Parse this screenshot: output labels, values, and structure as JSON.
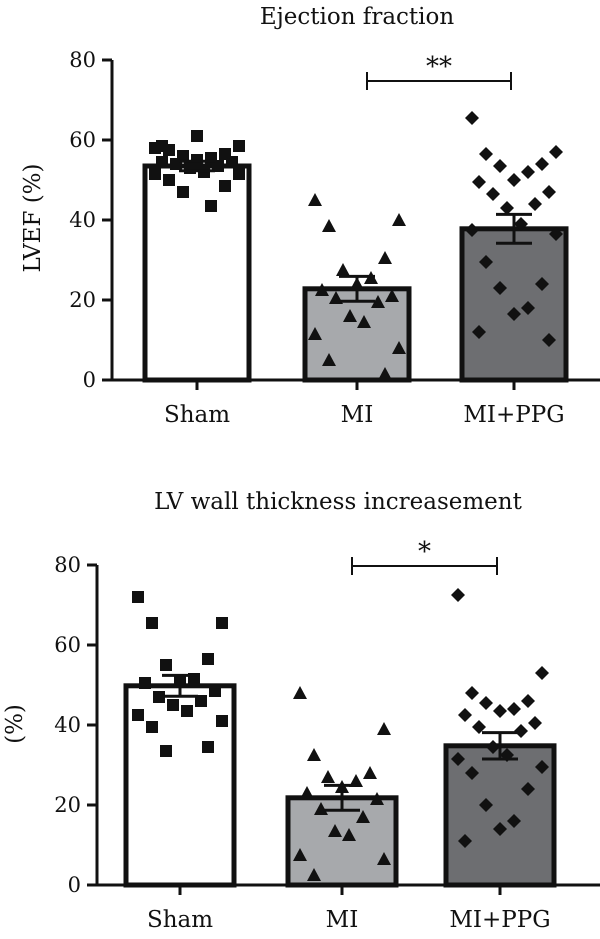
{
  "chart_data": [
    {
      "type": "bar",
      "title": "Ejection fraction",
      "ylabel": "LVEF (%)",
      "xlabel": "",
      "ylim": [
        0,
        80
      ],
      "yticks": [
        "0",
        "20",
        "40",
        "60",
        "80"
      ],
      "categories": [
        "Sham",
        "MI",
        "MI+PPG"
      ],
      "bar_colors": [
        "#ffffff",
        "#a7a9ac",
        "#6d6e71"
      ],
      "marker_shapes": [
        "square",
        "triangle",
        "diamond"
      ],
      "values": [
        53.5,
        22.8,
        37.8
      ],
      "sem": [
        1.2,
        3.1,
        3.6
      ],
      "points": [
        [
          58,
          58.5,
          57.5,
          56.5,
          56,
          55.5,
          55,
          54.5,
          54.5,
          54,
          53.5,
          53,
          52,
          51.5,
          51.5,
          50,
          48.5,
          47,
          43.5,
          61,
          58.5
        ],
        [
          45,
          40,
          38.5,
          30.5,
          27.5,
          25.5,
          24,
          22.5,
          21,
          20.5,
          19.5,
          16,
          14.5,
          11.5,
          8,
          5,
          1.5
        ],
        [
          65.5,
          57,
          56.5,
          54,
          53.5,
          52,
          50,
          49.5,
          47,
          46.5,
          44,
          43,
          39,
          37.5,
          36.5,
          29.5,
          24,
          23,
          18,
          16.5,
          12,
          10
        ]
      ],
      "significance": {
        "from": "MI",
        "to": "MI+PPG",
        "label": "**"
      }
    },
    {
      "type": "bar",
      "title": "LV wall thickness increasement",
      "ylabel": "(%)",
      "xlabel": "",
      "ylim": [
        0,
        80
      ],
      "yticks": [
        "0",
        "20",
        "40",
        "60",
        "80"
      ],
      "categories": [
        "Sham",
        "MI",
        "MI+PPG"
      ],
      "bar_colors": [
        "#ffffff",
        "#a7a9ac",
        "#6d6e71"
      ],
      "marker_shapes": [
        "square",
        "triangle",
        "diamond"
      ],
      "values": [
        49.8,
        21.8,
        34.8
      ],
      "sem": [
        2.6,
        3.1,
        3.3
      ],
      "points": [
        [
          72,
          65.5,
          65.5,
          56.5,
          55,
          51.5,
          51,
          50.5,
          48.5,
          47,
          46,
          45,
          43.5,
          42.5,
          41,
          39.5,
          34.5,
          33.5
        ],
        [
          48,
          39,
          32.5,
          28,
          27,
          26,
          24.5,
          23,
          21.5,
          19,
          17,
          13.5,
          12.5,
          7.5,
          6.5,
          2.5
        ],
        [
          72.5,
          53,
          48,
          46,
          45.5,
          44,
          43.5,
          42.5,
          40.5,
          39.5,
          38.5,
          34.5,
          32.5,
          31.5,
          29.5,
          28,
          24,
          20,
          16,
          14,
          11
        ]
      ],
      "significance": {
        "from": "MI",
        "to": "MI+PPG",
        "label": "*"
      }
    }
  ]
}
